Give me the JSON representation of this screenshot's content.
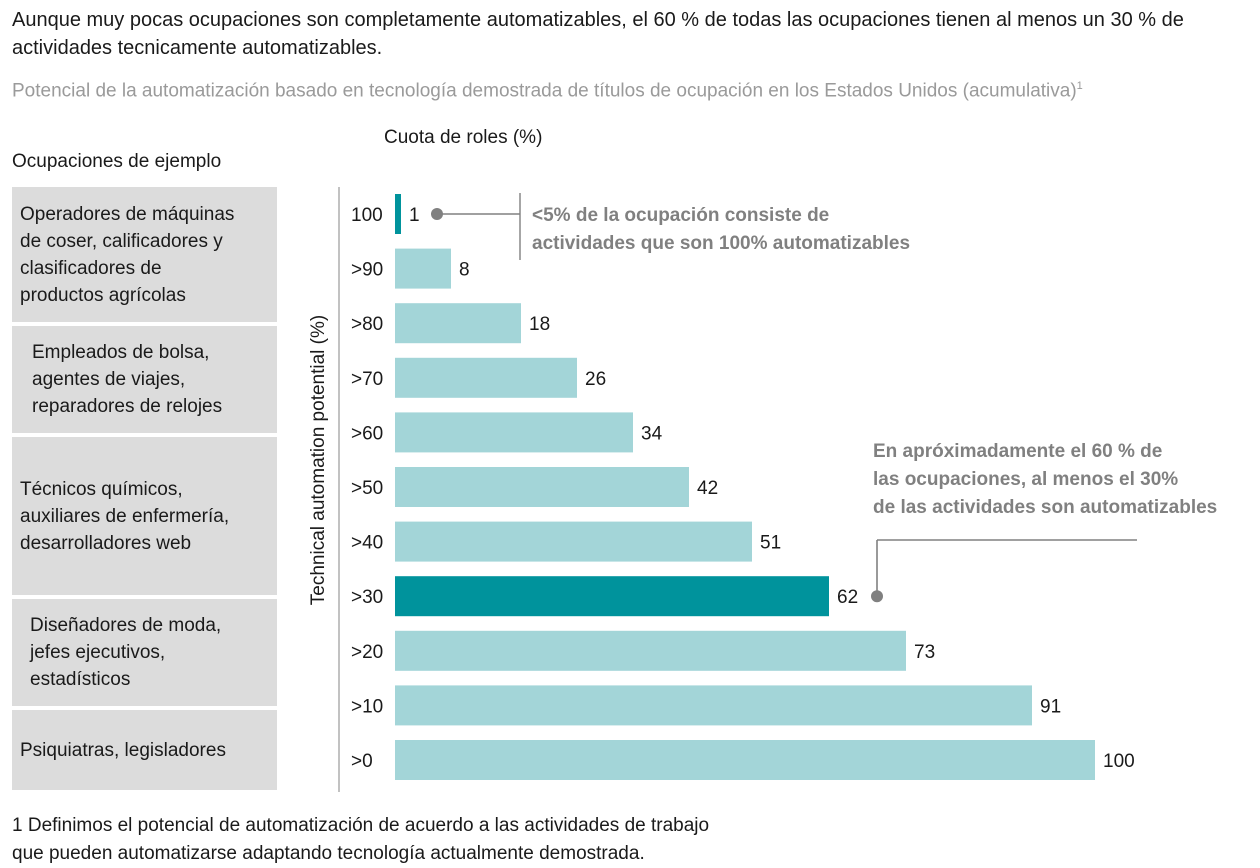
{
  "headline": "Aunque muy pocas ocupaciones son completamente automatizables, el 60 % de todas las ocupaciones tienen al menos un 30 % de actividades tecnicamente automatizables.",
  "subtitle": "Potencial de la automatización basado en tecnología demostrada de títulos de ocupación en los Estados Unidos (acumulativa)",
  "subtitle_footnote_mark": "1",
  "occupations_title": "Ocupaciones de ejemplo",
  "occupation_groups": [
    {
      "lines": [
        "Operadores de máquinas",
        "de coser, calificadores y",
        "clasificadores de",
        "productos agrícolas"
      ]
    },
    {
      "lines": [
        "Empleados de bolsa,",
        "agentes de viajes,",
        "reparadores de relojes"
      ]
    },
    {
      "lines": [
        "Técnicos químicos,",
        "auxiliares de enfermería,",
        "desarrolladores web"
      ]
    },
    {
      "lines": [
        "Diseñadores de moda,",
        "jefes ejecutivos,",
        "estadísticos"
      ]
    },
    {
      "lines": [
        "Psiquiatras, legisladores"
      ]
    }
  ],
  "footnote": [
    "1 Definimos el potencial de automatización de acuerdo a las actividades de trabajo",
    "que pueden automatizarse adaptando tecnología actualmente demostrada."
  ],
  "colors": {
    "bar": "#a3d5d8",
    "highlight": "#00939c",
    "annotation": "#808080",
    "axis": "#999999"
  },
  "chart_data": {
    "type": "bar",
    "orientation": "horizontal",
    "title": "Cuota de roles  (%)",
    "ylabel": "Technical automation potential (%)",
    "categories": [
      "100",
      ">90",
      ">80",
      ">70",
      ">60",
      ">50",
      ">40",
      ">30",
      ">20",
      ">10",
      ">0"
    ],
    "values": [
      1,
      8,
      18,
      26,
      34,
      42,
      51,
      62,
      73,
      91,
      100
    ],
    "highlighted": [
      "100",
      ">30"
    ],
    "xlim": [
      0,
      100
    ],
    "grid": false,
    "annotations": [
      {
        "category": "100",
        "lines": [
          "<5% de la ocupación consiste de",
          "actividades que son 100% automatizables"
        ]
      },
      {
        "category": ">30",
        "lines": [
          "En apróximadamente el 60 % de",
          "las ocupaciones, al menos el 30%",
          "de las actividades son automatizables"
        ]
      }
    ]
  }
}
